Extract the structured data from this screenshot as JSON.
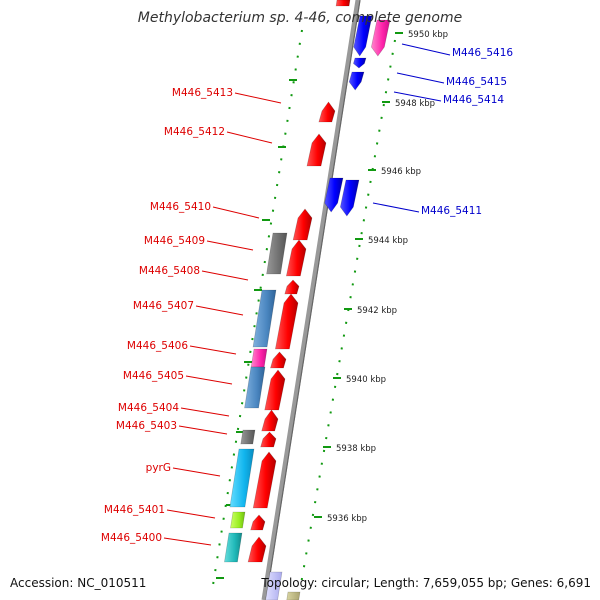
{
  "title": "Methylobacterium sp. 4-46, complete genome",
  "footer": {
    "accession": "Accession: NC_010511",
    "topology": "Topology: circular; Length: 7,659,055 bp; Genes: 6,691"
  },
  "colors": {
    "forward_gene": "#ff0000",
    "reverse_gene": "#0000ff",
    "pink_feature": "#ff33aa",
    "gray_feature": "#777777",
    "steelblue_feature": "#4a86c0",
    "cyan_feature": "#22bbee",
    "teal_feature": "#22bbbb",
    "lime_feature": "#99ee22",
    "tick": "#119911",
    "backbone": "#999999"
  },
  "kbp_marks": [
    "5950 kbp",
    "5948 kbp",
    "5946 kbp",
    "5944 kbp",
    "5942 kbp",
    "5940 kbp",
    "5938 kbp",
    "5936 kbp"
  ],
  "left_labels": [
    "M446_5413",
    "M446_5412",
    "M446_5410",
    "M446_5409",
    "M446_5408",
    "M446_5407",
    "M446_5406",
    "M446_5405",
    "M446_5404",
    "M446_5403",
    "pyrG",
    "M446_5401",
    "M446_5400"
  ],
  "right_labels": [
    "M446_5416",
    "M446_5415",
    "M446_5414",
    "M446_5411"
  ]
}
